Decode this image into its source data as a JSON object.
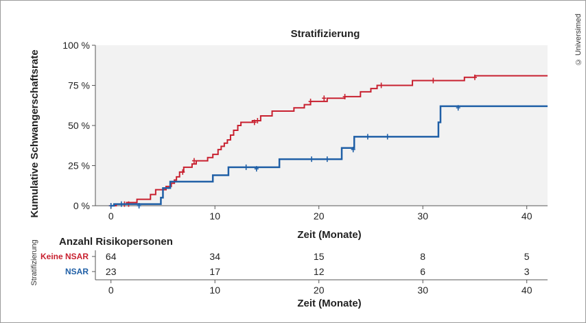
{
  "copyright": "© Universimed",
  "chart_data": {
    "type": "step",
    "title": "Stratifizierung",
    "xlabel": "Zeit (Monate)",
    "ylabel": "Kumulative Schwangerschaftsrate",
    "xlim": [
      -1.5,
      42
    ],
    "ylim": [
      0,
      100
    ],
    "x_ticks": [
      0,
      10,
      20,
      30,
      40
    ],
    "y_ticks": [
      0,
      25,
      50,
      75,
      100
    ],
    "y_tick_labels": [
      "0 %",
      "25 %",
      "50 %",
      "75 %",
      "100 %"
    ],
    "grid": false,
    "series": [
      {
        "name": "Keine NSAR",
        "color": "#c8202f",
        "steps": [
          [
            0,
            0
          ],
          [
            0.5,
            1
          ],
          [
            1.5,
            2
          ],
          [
            2.5,
            4
          ],
          [
            3.8,
            7
          ],
          [
            4.3,
            10
          ],
          [
            5.3,
            12
          ],
          [
            5.8,
            14
          ],
          [
            6.1,
            16
          ],
          [
            6.3,
            18
          ],
          [
            6.6,
            21
          ],
          [
            7.0,
            24
          ],
          [
            7.8,
            26
          ],
          [
            8.2,
            28
          ],
          [
            9.3,
            30
          ],
          [
            9.8,
            32
          ],
          [
            10.3,
            35
          ],
          [
            10.6,
            37
          ],
          [
            10.9,
            39
          ],
          [
            11.2,
            41
          ],
          [
            11.5,
            44
          ],
          [
            11.8,
            47
          ],
          [
            12.2,
            50
          ],
          [
            12.5,
            52
          ],
          [
            13.6,
            53
          ],
          [
            14.4,
            56
          ],
          [
            15.5,
            59
          ],
          [
            17.6,
            61
          ],
          [
            18.6,
            63
          ],
          [
            19.2,
            65
          ],
          [
            20.8,
            67
          ],
          [
            22.5,
            68
          ],
          [
            24.0,
            71
          ],
          [
            25.0,
            73
          ],
          [
            25.6,
            75
          ],
          [
            29.0,
            78
          ],
          [
            34.0,
            80
          ],
          [
            35.0,
            81
          ]
        ],
        "x_end": 42,
        "censored": [
          [
            0,
            0
          ],
          [
            1.3,
            1
          ],
          [
            1.7,
            1
          ],
          [
            6.9,
            21
          ],
          [
            8.0,
            28
          ],
          [
            13.8,
            52
          ],
          [
            14.1,
            53
          ],
          [
            19.2,
            65
          ],
          [
            20.5,
            67
          ],
          [
            22.5,
            68
          ],
          [
            26.0,
            75
          ],
          [
            31.0,
            78
          ],
          [
            35.0,
            80
          ]
        ]
      },
      {
        "name": "NSAR",
        "color": "#1f5fa6",
        "steps": [
          [
            0,
            0
          ],
          [
            0.3,
            1
          ],
          [
            4.8,
            5
          ],
          [
            5.0,
            11
          ],
          [
            5.7,
            15
          ],
          [
            7.1,
            15
          ],
          [
            9.8,
            19
          ],
          [
            11.3,
            24
          ],
          [
            16.2,
            29
          ],
          [
            22.2,
            36
          ],
          [
            23.4,
            43
          ],
          [
            31.5,
            52
          ],
          [
            31.7,
            62
          ]
        ],
        "x_end": 42,
        "censored": [
          [
            0,
            0
          ],
          [
            1.0,
            1
          ],
          [
            2.7,
            0
          ],
          [
            13.0,
            24
          ],
          [
            14.0,
            23
          ],
          [
            19.3,
            29
          ],
          [
            20.8,
            29
          ],
          [
            23.3,
            35
          ],
          [
            24.7,
            43
          ],
          [
            26.6,
            43
          ],
          [
            33.4,
            61
          ]
        ]
      }
    ],
    "risk_table": {
      "title": "Anzahl Risikopersonen",
      "stratum_label": "Stratifizierung",
      "xlabel": "Zeit (Monate)",
      "times": [
        0,
        10,
        20,
        30,
        40
      ],
      "rows": [
        {
          "label": "Keine NSAR",
          "color": "#c8202f",
          "counts": [
            "64",
            "34",
            "15",
            "8",
            "5"
          ]
        },
        {
          "label": "NSAR",
          "color": "#1f5fa6",
          "counts": [
            "23",
            "17",
            "12",
            "6",
            "3"
          ]
        }
      ]
    }
  }
}
